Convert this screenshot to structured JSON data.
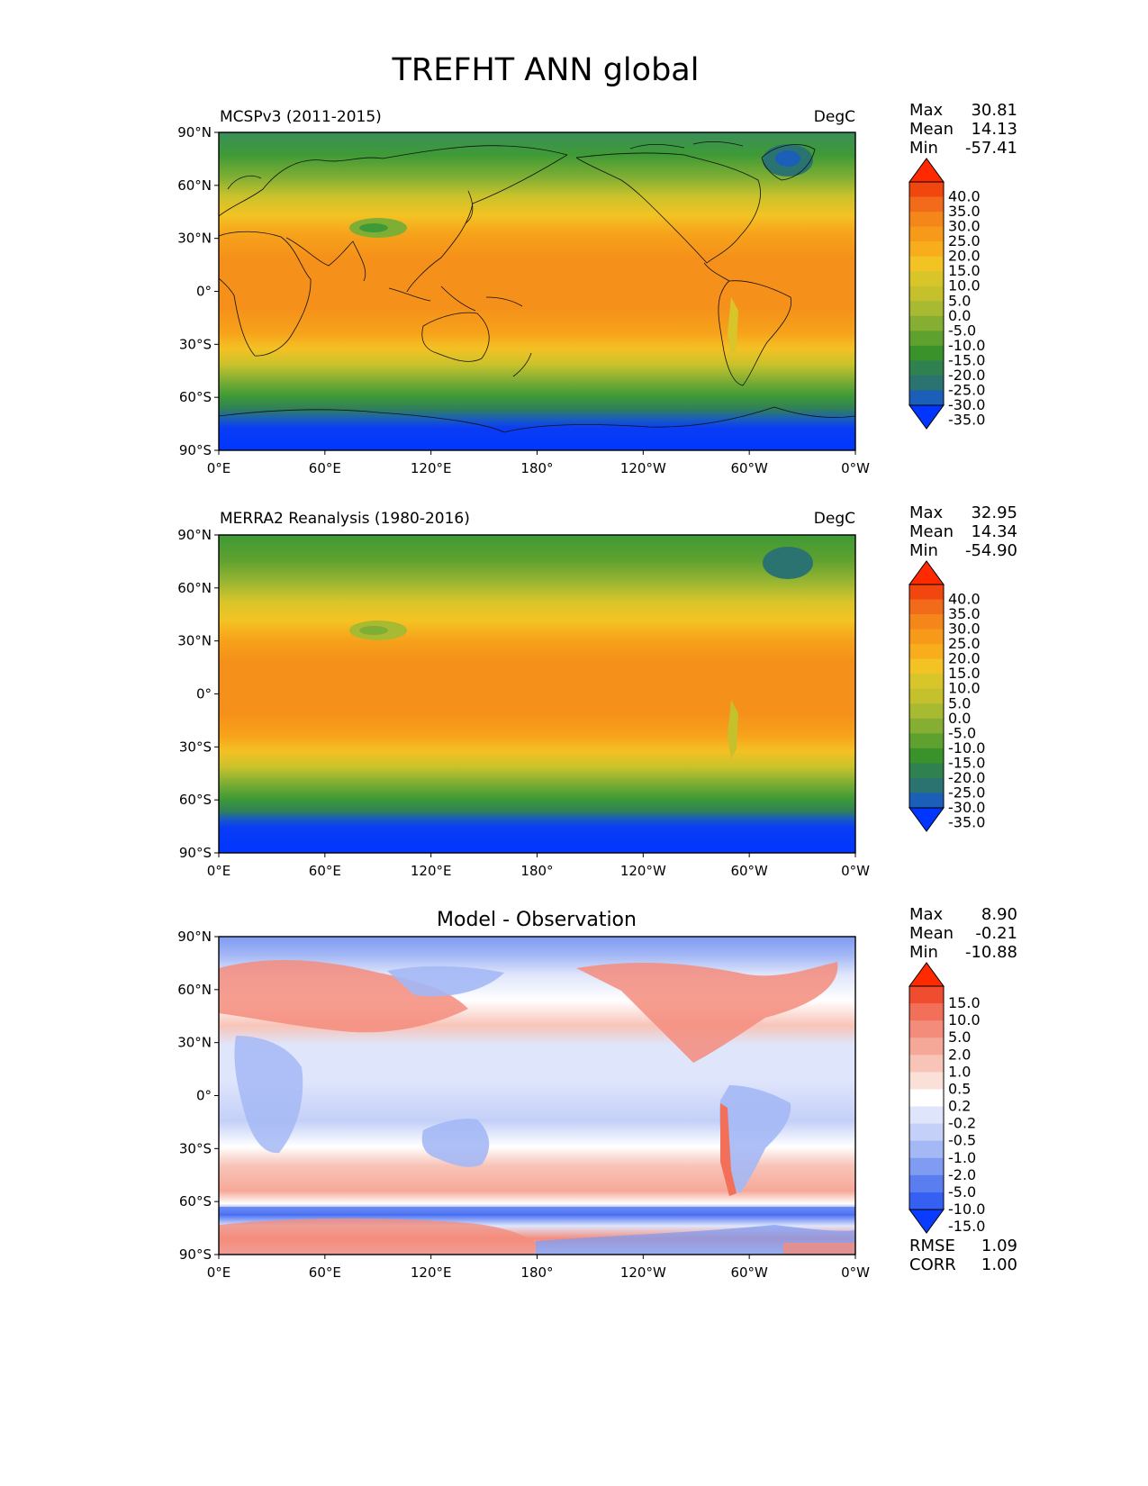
{
  "title": "TREFHT ANN global",
  "axes": {
    "lat_ticks": [
      "90°N",
      "60°N",
      "30°N",
      "0°",
      "30°S",
      "60°S",
      "90°S"
    ],
    "lon_ticks": [
      "0°E",
      "60°E",
      "120°E",
      "180°",
      "120°W",
      "60°W",
      "0°W"
    ]
  },
  "panels": [
    {
      "id": "model",
      "left_title": "MCSPv3 (2011-2015)",
      "center_title": "",
      "units": "DegC",
      "stats": [
        {
          "label": "Max",
          "value": "30.81"
        },
        {
          "label": "Mean",
          "value": "14.13"
        },
        {
          "label": "Min",
          "value": "-57.41"
        }
      ],
      "colorbar": {
        "ticks": [
          "40.0",
          "35.0",
          "30.0",
          "25.0",
          "20.0",
          "15.0",
          "10.0",
          "5.0",
          "0.0",
          "-5.0",
          "-10.0",
          "-15.0",
          "-20.0",
          "-25.0",
          "-30.0",
          "-35.0"
        ],
        "colors": [
          "#ff2a00",
          "#f2460f",
          "#f26b1a",
          "#f5861a",
          "#f79a1a",
          "#f8ae1c",
          "#f3c323",
          "#d8c52a",
          "#c4c12d",
          "#a8b932",
          "#85ae33",
          "#5fa12f",
          "#3a922b",
          "#2f8250",
          "#2a7370",
          "#1b5fb8",
          "#0036ff"
        ]
      },
      "footer": []
    },
    {
      "id": "obs",
      "left_title": "MERRA2 Reanalysis (1980-2016)",
      "center_title": "",
      "units": "DegC",
      "stats": [
        {
          "label": "Max",
          "value": "32.95"
        },
        {
          "label": "Mean",
          "value": "14.34"
        },
        {
          "label": "Min",
          "value": "-54.90"
        }
      ],
      "colorbar": {
        "ticks": [
          "40.0",
          "35.0",
          "30.0",
          "25.0",
          "20.0",
          "15.0",
          "10.0",
          "5.0",
          "0.0",
          "-5.0",
          "-10.0",
          "-15.0",
          "-20.0",
          "-25.0",
          "-30.0",
          "-35.0"
        ],
        "colors": [
          "#ff2a00",
          "#f2460f",
          "#f26b1a",
          "#f5861a",
          "#f79a1a",
          "#f8ae1c",
          "#f3c323",
          "#d8c52a",
          "#c4c12d",
          "#a8b932",
          "#85ae33",
          "#5fa12f",
          "#3a922b",
          "#2f8250",
          "#2a7370",
          "#1b5fb8",
          "#0036ff"
        ]
      },
      "footer": []
    },
    {
      "id": "diff",
      "left_title": "",
      "center_title": "Model - Observation",
      "units": "",
      "stats": [
        {
          "label": "Max",
          "value": "8.90"
        },
        {
          "label": "Mean",
          "value": "-0.21"
        },
        {
          "label": "Min",
          "value": "-10.88"
        }
      ],
      "colorbar": {
        "ticks": [
          "15.0",
          "10.0",
          "5.0",
          "2.0",
          "1.0",
          "0.5",
          "0.2",
          "-0.2",
          "-0.5",
          "-1.0",
          "-2.0",
          "-5.0",
          "-10.0",
          "-15.0"
        ],
        "colors": [
          "#ff2a00",
          "#f04c30",
          "#f2705a",
          "#f48c7c",
          "#f6a898",
          "#f8c4b8",
          "#fbe0d8",
          "#ffffff",
          "#dfe5fb",
          "#c4d0f8",
          "#a4b8f5",
          "#7f9bf2",
          "#5a7ef0",
          "#3560f2",
          "#0a3cff"
        ]
      },
      "footer": [
        {
          "label": "RMSE",
          "value": "1.09"
        },
        {
          "label": "CORR",
          "value": "1.00"
        }
      ]
    }
  ],
  "chart_data": [
    {
      "type": "heatmap",
      "left_title": "MCSPv3 (2011-2015)",
      "units": "DegC",
      "xlim": [
        0,
        360
      ],
      "ylim": [
        -90,
        90
      ],
      "grid": false,
      "stats": {
        "max": 30.81,
        "mean": 14.13,
        "min": -57.41
      },
      "levels": [
        -35,
        -30,
        -25,
        -20,
        -15,
        -10,
        -5,
        0,
        5,
        10,
        15,
        20,
        25,
        30,
        35,
        40
      ]
    },
    {
      "type": "heatmap",
      "left_title": "MERRA2 Reanalysis (1980-2016)",
      "units": "DegC",
      "xlim": [
        0,
        360
      ],
      "ylim": [
        -90,
        90
      ],
      "grid": false,
      "stats": {
        "max": 32.95,
        "mean": 14.34,
        "min": -54.9
      },
      "levels": [
        -35,
        -30,
        -25,
        -20,
        -15,
        -10,
        -5,
        0,
        5,
        10,
        15,
        20,
        25,
        30,
        35,
        40
      ]
    },
    {
      "type": "heatmap",
      "title": "Model - Observation",
      "xlim": [
        0,
        360
      ],
      "ylim": [
        -90,
        90
      ],
      "grid": false,
      "stats": {
        "max": 8.9,
        "mean": -0.21,
        "min": -10.88,
        "rmse": 1.09,
        "corr": 1.0
      },
      "levels": [
        -15,
        -10,
        -5,
        -2,
        -1,
        -0.5,
        -0.2,
        0.2,
        0.5,
        1,
        2,
        5,
        10,
        15
      ]
    }
  ]
}
